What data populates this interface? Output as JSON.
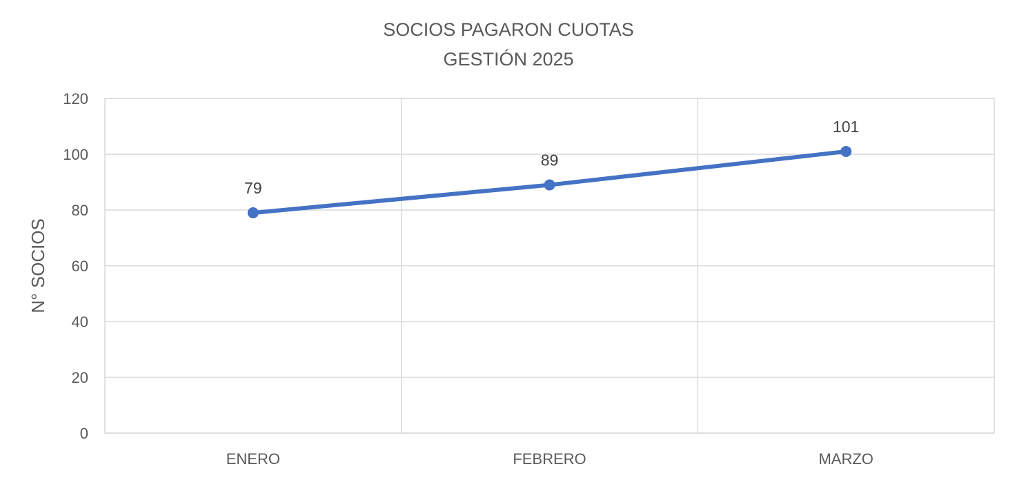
{
  "chart_data": {
    "type": "line",
    "title_lines": [
      "SOCIOS PAGARON CUOTAS",
      "GESTIÓN 2025"
    ],
    "xlabel": "",
    "ylabel": "N° SOCIOS",
    "categories": [
      "ENERO",
      "FEBRERO",
      "MARZO"
    ],
    "series": [
      {
        "values": [
          79,
          89,
          101
        ]
      }
    ],
    "data_labels": [
      "79",
      "89",
      "101"
    ],
    "ylim": [
      0,
      120
    ],
    "y_ticks": [
      0,
      20,
      40,
      60,
      80,
      100,
      120
    ],
    "y_tick_labels": [
      "0",
      "20",
      "40",
      "60",
      "80",
      "100",
      "120"
    ],
    "grid": true,
    "legend": "none"
  },
  "colors": {
    "series": "#4472c4",
    "grid": "#d9d9d9",
    "text": "#595959"
  }
}
